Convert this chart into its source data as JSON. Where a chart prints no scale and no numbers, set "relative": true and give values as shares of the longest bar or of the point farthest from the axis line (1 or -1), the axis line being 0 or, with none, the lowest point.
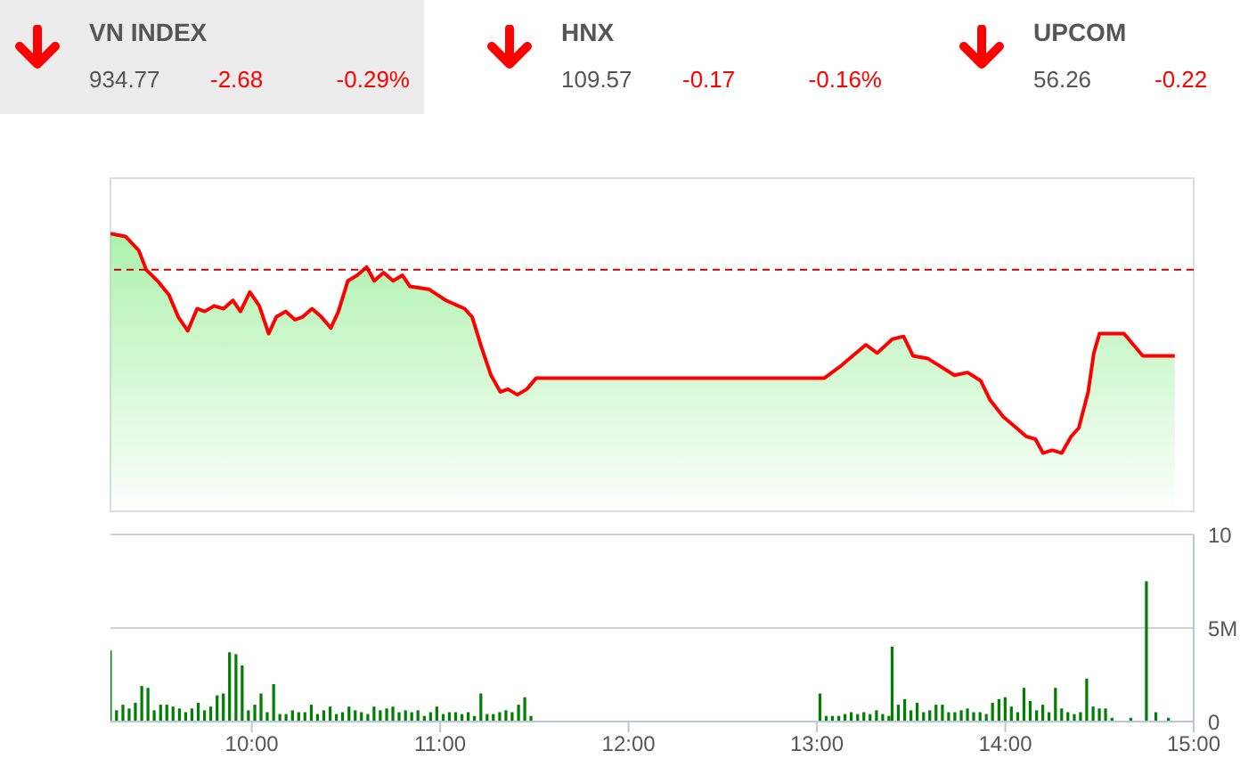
{
  "chart_data": [
    {
      "type": "other",
      "annotations": [
        "VN INDEX",
        "934.77",
        "-2.68",
        "-0.29%",
        "HNX",
        "109.57",
        "-0.17",
        "-0.16%",
        "UPCOM",
        "56.26",
        "-0.22"
      ]
    },
    {
      "type": "area",
      "xlim": [
        9.25,
        15
      ],
      "relative": true,
      "tick_labels": false,
      "ref_lines": [
        {
          "axis": "y",
          "value": 0.87,
          "color": "#cc0000",
          "line_style": "dashed"
        }
      ],
      "series": [
        {
          "color": "#ff0000",
          "x": [
            9.25,
            9.33,
            9.4,
            9.44,
            9.5,
            9.56,
            9.61,
            9.66,
            9.71,
            9.75,
            9.8,
            9.85,
            9.9,
            9.94,
            9.99,
            10.04,
            10.09,
            10.13,
            10.18,
            10.23,
            10.27,
            10.32,
            10.37,
            10.42,
            10.46,
            10.51,
            10.56,
            10.61,
            10.65,
            10.7,
            10.75,
            10.8,
            10.84,
            10.94,
            11.03,
            11.13,
            11.17,
            11.22,
            11.27,
            11.32,
            11.36,
            11.41,
            11.46,
            11.51,
            13.04,
            13.12,
            13.19,
            13.26,
            13.32,
            13.4,
            13.46,
            13.51,
            13.59,
            13.66,
            13.73,
            13.8,
            13.87,
            13.92,
            13.99,
            14.06,
            14.11,
            14.16,
            14.2,
            14.25,
            14.3,
            14.35,
            14.39,
            14.44,
            14.47,
            14.5,
            14.63,
            14.73,
            14.9
          ],
          "values": [
            1.0,
            0.99,
            0.94,
            0.87,
            0.83,
            0.78,
            0.7,
            0.65,
            0.73,
            0.72,
            0.74,
            0.73,
            0.76,
            0.72,
            0.79,
            0.74,
            0.64,
            0.7,
            0.72,
            0.69,
            0.7,
            0.73,
            0.7,
            0.66,
            0.72,
            0.83,
            0.85,
            0.88,
            0.83,
            0.86,
            0.83,
            0.85,
            0.81,
            0.8,
            0.76,
            0.73,
            0.7,
            0.59,
            0.49,
            0.43,
            0.44,
            0.42,
            0.44,
            0.48,
            0.48,
            0.52,
            0.56,
            0.6,
            0.57,
            0.62,
            0.63,
            0.56,
            0.55,
            0.52,
            0.49,
            0.5,
            0.47,
            0.4,
            0.34,
            0.3,
            0.27,
            0.26,
            0.21,
            0.22,
            0.21,
            0.27,
            0.3,
            0.43,
            0.57,
            0.64,
            0.64,
            0.56,
            0.56
          ]
        }
      ]
    },
    {
      "type": "bar",
      "xlim": [
        9.25,
        15
      ],
      "xticks": [
        {
          "value": 10,
          "label": "10:00"
        },
        {
          "value": 11,
          "label": "11:00"
        },
        {
          "value": 12,
          "label": "12:00"
        },
        {
          "value": 13,
          "label": "13:00"
        },
        {
          "value": 14,
          "label": "14:00"
        },
        {
          "value": 15,
          "label": "15:00"
        }
      ],
      "ylim": [
        0,
        10
      ],
      "yticks": [
        {
          "value": 0,
          "label": "0"
        },
        {
          "value": 5,
          "label": "5M"
        },
        {
          "value": 10,
          "label": "10"
        }
      ],
      "grid": "y",
      "x": [
        9.25,
        9.283,
        9.317,
        9.35,
        9.383,
        9.417,
        9.45,
        9.483,
        9.517,
        9.55,
        9.583,
        9.617,
        9.65,
        9.683,
        9.717,
        9.75,
        9.783,
        9.817,
        9.85,
        9.883,
        9.917,
        9.95,
        9.983,
        10.017,
        10.05,
        10.083,
        10.117,
        10.15,
        10.183,
        10.217,
        10.25,
        10.283,
        10.317,
        10.35,
        10.383,
        10.417,
        10.45,
        10.483,
        10.517,
        10.55,
        10.583,
        10.617,
        10.65,
        10.683,
        10.717,
        10.75,
        10.783,
        10.817,
        10.85,
        10.883,
        10.917,
        10.95,
        10.983,
        11.017,
        11.05,
        11.083,
        11.117,
        11.15,
        11.183,
        11.217,
        11.25,
        11.283,
        11.317,
        11.35,
        11.383,
        11.417,
        11.45,
        11.483,
        13.017,
        13.05,
        13.083,
        13.117,
        13.15,
        13.183,
        13.217,
        13.25,
        13.283,
        13.317,
        13.35,
        13.383,
        13.4,
        13.433,
        13.467,
        13.5,
        13.533,
        13.567,
        13.6,
        13.633,
        13.667,
        13.7,
        13.733,
        13.767,
        13.8,
        13.833,
        13.867,
        13.9,
        13.933,
        13.967,
        14.0,
        14.033,
        14.067,
        14.1,
        14.133,
        14.167,
        14.2,
        14.233,
        14.267,
        14.3,
        14.333,
        14.367,
        14.4,
        14.433,
        14.467,
        14.5,
        14.533,
        14.567,
        14.667,
        14.75,
        14.8,
        14.867
      ],
      "series": [
        {
          "color": "#008000",
          "values": [
            3.8,
            0.6,
            0.9,
            0.7,
            1.0,
            1.9,
            1.8,
            0.6,
            0.9,
            0.9,
            0.8,
            0.7,
            0.5,
            0.7,
            1.0,
            0.6,
            0.8,
            1.4,
            1.5,
            3.7,
            3.6,
            3.0,
            0.6,
            0.9,
            1.5,
            0.5,
            2.0,
            0.4,
            0.4,
            0.6,
            0.5,
            0.5,
            0.9,
            0.4,
            0.6,
            0.8,
            0.4,
            0.5,
            0.8,
            0.6,
            0.5,
            0.4,
            0.8,
            0.6,
            0.7,
            0.8,
            0.5,
            0.6,
            0.5,
            0.6,
            0.3,
            0.5,
            0.8,
            0.4,
            0.5,
            0.5,
            0.4,
            0.5,
            0.3,
            1.5,
            0.4,
            0.4,
            0.5,
            0.6,
            0.5,
            0.9,
            1.3,
            0.3,
            1.5,
            0.3,
            0.3,
            0.3,
            0.4,
            0.5,
            0.4,
            0.5,
            0.4,
            0.6,
            0.4,
            0.3,
            4.0,
            0.9,
            1.2,
            0.6,
            1.0,
            0.5,
            0.6,
            0.9,
            0.9,
            0.5,
            0.5,
            0.6,
            0.7,
            0.5,
            0.5,
            0.4,
            1.0,
            1.2,
            1.3,
            0.8,
            0.5,
            1.8,
            1.1,
            0.6,
            0.9,
            0.5,
            1.8,
            0.7,
            0.5,
            0.4,
            0.5,
            2.3,
            0.8,
            0.7,
            0.7,
            0.2,
            0.2,
            7.5,
            0.5,
            0.2
          ]
        }
      ]
    }
  ]
}
